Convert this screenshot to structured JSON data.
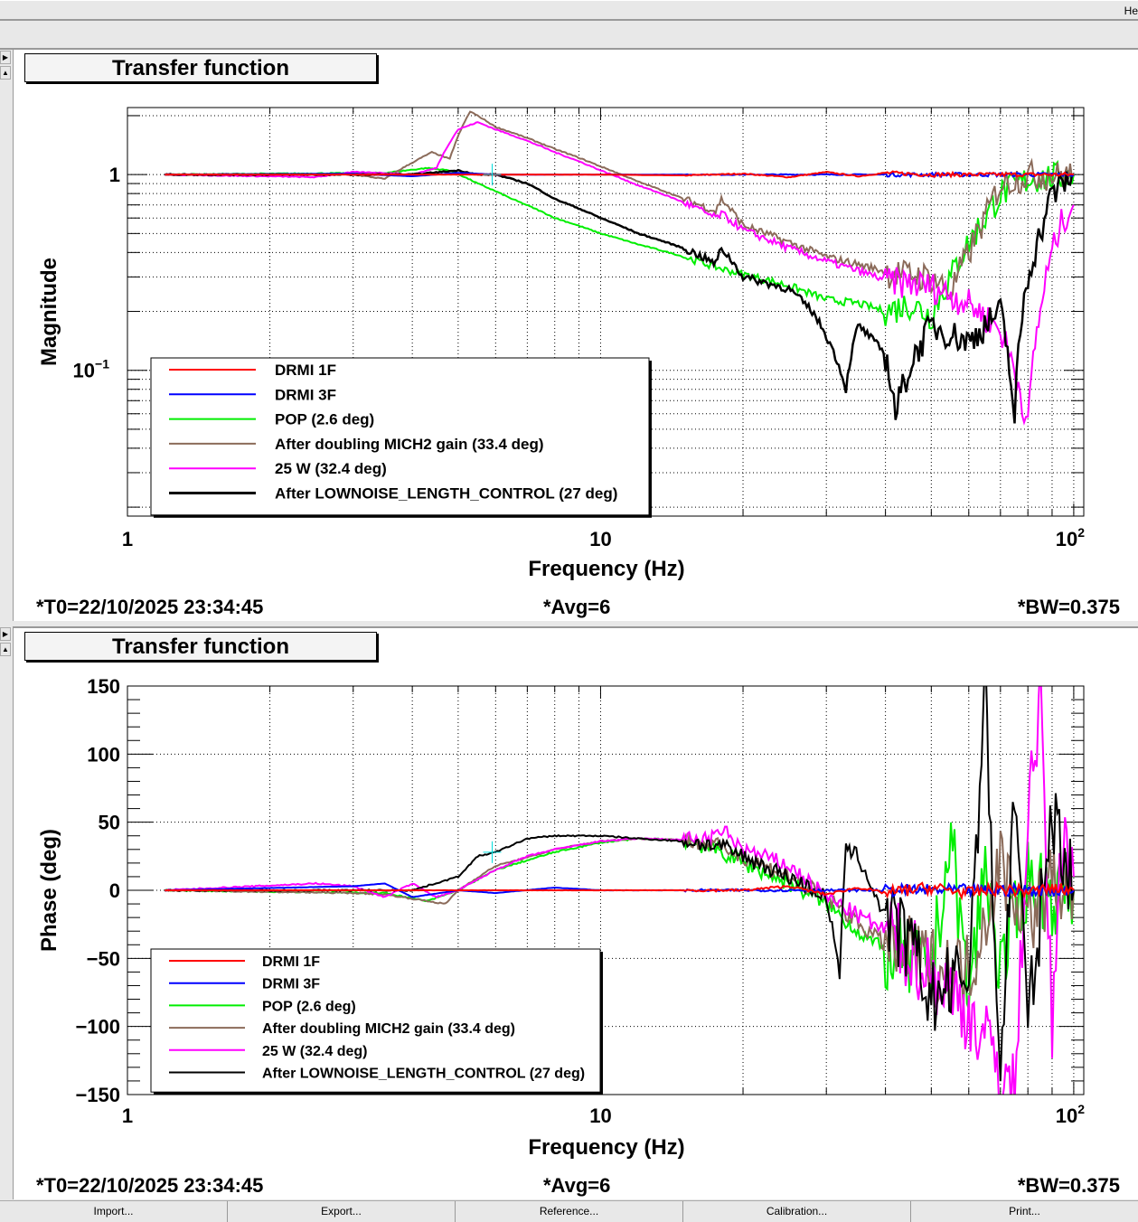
{
  "window": {
    "menu_help": "He"
  },
  "panels": [
    {
      "title": "Transfer function",
      "footer_t0": "*T0=22/10/2025 23:34:45",
      "footer_avg": "*Avg=6",
      "footer_bw": "*BW=0.375"
    },
    {
      "title": "Transfer function",
      "footer_t0": "*T0=22/10/2025 23:34:45",
      "footer_avg": "*Avg=6",
      "footer_bw": "*BW=0.375"
    }
  ],
  "buttons": [
    "Import...",
    "Export...",
    "Reference...",
    "Calibration...",
    "Print..."
  ],
  "chart_data": [
    {
      "type": "line",
      "title": "Transfer function",
      "xlabel": "Frequency (Hz)",
      "ylabel": "Magnitude",
      "xscale": "log",
      "yscale": "log",
      "xlim": [
        1,
        105
      ],
      "ylim": [
        0.018,
        2.2
      ],
      "xticks": [
        {
          "v": 1,
          "label": "1"
        },
        {
          "v": 10,
          "label": "10"
        },
        {
          "v": 100,
          "label": "10",
          "sup": "2"
        }
      ],
      "yticks": [
        {
          "v": 1,
          "label": "1"
        },
        {
          "v": 0.1,
          "label": "10",
          "sup": "−1"
        }
      ],
      "grid": true,
      "legend_position": "bottom-left",
      "series": [
        {
          "name": "DRMI 1F",
          "color": "#ff0000",
          "x": [
            1.2,
            3,
            5,
            10,
            15,
            20,
            25,
            30,
            35,
            40,
            50,
            60,
            70,
            80,
            90,
            100
          ],
          "y": [
            1,
            1,
            1,
            1,
            0.99,
            1.01,
            0.97,
            1.03,
            0.98,
            1.02,
            1,
            1,
            1,
            1,
            1,
            1
          ]
        },
        {
          "name": "DRMI 3F",
          "color": "#0000ff",
          "x": [
            1.2,
            3,
            4,
            5,
            6,
            10,
            20,
            40,
            70,
            100
          ],
          "y": [
            1,
            1.01,
            0.98,
            1.02,
            1,
            1,
            1,
            1,
            1,
            1
          ]
        },
        {
          "name": "POP (2.6 deg)",
          "color": "#00ee00",
          "x": [
            1.2,
            3.5,
            4.3,
            4.8,
            5.5,
            6.5,
            8,
            10,
            12,
            15,
            18,
            20,
            25,
            30,
            35,
            40,
            45,
            50,
            55,
            60,
            65,
            70,
            80,
            90,
            100
          ],
          "y": [
            1,
            1.02,
            1.08,
            1.05,
            0.9,
            0.75,
            0.6,
            0.5,
            0.44,
            0.38,
            0.33,
            0.31,
            0.27,
            0.23,
            0.22,
            0.2,
            0.22,
            0.19,
            0.3,
            0.45,
            0.6,
            0.8,
            0.95,
            0.98,
            1
          ]
        },
        {
          "name": "After doubling MICH2 gain (33.4 deg)",
          "color": "#8b6b5a",
          "x": [
            1.2,
            3,
            3.5,
            4,
            4.4,
            4.8,
            5.3,
            6,
            8,
            10,
            12,
            15,
            17.5,
            18,
            20,
            25,
            30,
            40,
            50,
            55,
            60,
            65,
            70,
            80,
            90,
            100
          ],
          "y": [
            1,
            1,
            0.95,
            1.15,
            1.3,
            1.2,
            2.1,
            1.75,
            1.35,
            1.1,
            0.92,
            0.75,
            0.65,
            0.75,
            0.55,
            0.45,
            0.38,
            0.32,
            0.3,
            0.25,
            0.4,
            0.6,
            0.9,
            1,
            1,
            1
          ]
        },
        {
          "name": "25 W (32.4 deg)",
          "color": "#ff00ff",
          "x": [
            1.2,
            2.5,
            3,
            3.5,
            4,
            4.5,
            5,
            5.5,
            6,
            8,
            10,
            12,
            15,
            17.5,
            18,
            20,
            25,
            30,
            40,
            50,
            60,
            70,
            75,
            80,
            85,
            90,
            95,
            100
          ],
          "y": [
            1,
            0.97,
            1.03,
            1.02,
            1.0,
            1.08,
            1.7,
            1.85,
            1.7,
            1.3,
            1.05,
            0.88,
            0.72,
            0.6,
            0.63,
            0.52,
            0.42,
            0.36,
            0.29,
            0.27,
            0.22,
            0.16,
            0.1,
            0.05,
            0.2,
            0.4,
            0.6,
            0.7
          ]
        },
        {
          "name": "After LOWNOISE_LENGTH_CONTROL (27 deg)",
          "color": "#000000",
          "x": [
            1.2,
            4,
            5,
            5.5,
            6,
            7,
            8,
            10,
            12,
            15,
            17.5,
            18,
            20,
            25,
            28,
            30,
            33,
            35,
            40,
            42,
            50,
            60,
            70,
            75,
            80,
            85,
            90,
            100
          ],
          "y": [
            1,
            1,
            1.05,
            1.0,
            1.0,
            0.9,
            0.75,
            0.6,
            0.5,
            0.42,
            0.35,
            0.42,
            0.3,
            0.26,
            0.2,
            0.15,
            0.08,
            0.17,
            0.12,
            0.06,
            0.17,
            0.14,
            0.2,
            0.05,
            0.3,
            0.5,
            0.8,
            1
          ]
        }
      ]
    },
    {
      "type": "line",
      "title": "Transfer function",
      "xlabel": "Frequency (Hz)",
      "ylabel": "Phase (deg)",
      "xscale": "log",
      "yscale": "linear",
      "xlim": [
        1,
        105
      ],
      "ylim": [
        -150,
        150
      ],
      "xticks": [
        {
          "v": 1,
          "label": "1"
        },
        {
          "v": 10,
          "label": "10"
        },
        {
          "v": 100,
          "label": "10",
          "sup": "2"
        }
      ],
      "yticks": [
        {
          "v": 150,
          "label": "150"
        },
        {
          "v": 100,
          "label": "100"
        },
        {
          "v": 50,
          "label": "50"
        },
        {
          "v": 0,
          "label": "0"
        },
        {
          "v": -50,
          "label": "−50"
        },
        {
          "v": -100,
          "label": "−100"
        },
        {
          "v": -150,
          "label": "−150"
        }
      ],
      "grid": true,
      "legend_position": "bottom-left",
      "series": [
        {
          "name": "DRMI 1F",
          "color": "#ff0000",
          "x": [
            1.2,
            5,
            10,
            20,
            25,
            30,
            35,
            40,
            50,
            60,
            70,
            80,
            90,
            100
          ],
          "y": [
            0,
            0,
            0,
            0,
            3,
            -3,
            2,
            -2,
            2,
            -2,
            1,
            -1,
            1,
            0
          ]
        },
        {
          "name": "DRMI 3F",
          "color": "#0000ff",
          "x": [
            1.2,
            3,
            3.5,
            4,
            5,
            6,
            8,
            10,
            20,
            40,
            100
          ],
          "y": [
            0,
            3,
            5,
            -5,
            0,
            -2,
            2,
            0,
            0,
            0,
            0
          ]
        },
        {
          "name": "POP (2.6 deg)",
          "color": "#00ee00",
          "x": [
            1.2,
            3.5,
            4.3,
            5,
            6,
            7,
            8,
            10,
            12,
            15,
            17.5,
            20,
            25,
            30,
            35,
            40,
            50,
            55,
            60,
            65,
            70,
            80,
            90,
            100
          ],
          "y": [
            0,
            -2,
            -8,
            0,
            15,
            22,
            28,
            35,
            38,
            37,
            30,
            20,
            5,
            -10,
            -30,
            -45,
            -60,
            40,
            -80,
            20,
            -60,
            10,
            -5,
            0
          ]
        },
        {
          "name": "After doubling MICH2 gain (33.4 deg)",
          "color": "#8b6b5a",
          "x": [
            1.2,
            3,
            3.5,
            4.7,
            5,
            6,
            7,
            8,
            10,
            12,
            15,
            18,
            20,
            25,
            30,
            40,
            50,
            60,
            70,
            80,
            90,
            100
          ],
          "y": [
            0,
            -2,
            -3,
            -10,
            0,
            18,
            24,
            30,
            36,
            38,
            37,
            32,
            25,
            10,
            -5,
            -40,
            -55,
            -60,
            20,
            -20,
            5,
            0
          ]
        },
        {
          "name": "25 W (32.4 deg)",
          "color": "#ff00ff",
          "x": [
            1.2,
            2.5,
            3,
            3.5,
            4,
            4.5,
            5,
            6,
            7,
            8,
            10,
            12,
            15,
            17.5,
            18,
            20,
            25,
            30,
            40,
            50,
            60,
            70,
            75,
            80,
            85,
            90,
            95,
            100
          ],
          "y": [
            0,
            5,
            3,
            -5,
            5,
            -5,
            0,
            15,
            25,
            30,
            36,
            38,
            37,
            38,
            45,
            30,
            18,
            -5,
            -30,
            -60,
            -90,
            -130,
            -150,
            60,
            140,
            -100,
            50,
            10
          ]
        },
        {
          "name": "After LOWNOISE_LENGTH_CONTROL (27 deg)",
          "color": "#000000",
          "x": [
            1.2,
            4,
            5,
            5.5,
            6,
            7,
            8,
            10,
            12,
            15,
            18,
            20,
            25,
            30,
            32,
            33,
            35,
            40,
            45,
            50,
            60,
            65,
            70,
            75,
            80,
            90,
            100
          ],
          "y": [
            0,
            0,
            10,
            25,
            28,
            38,
            40,
            40,
            38,
            36,
            32,
            25,
            10,
            -5,
            -60,
            30,
            25,
            -20,
            -40,
            -80,
            -60,
            150,
            -140,
            80,
            -100,
            60,
            0
          ]
        }
      ]
    }
  ]
}
